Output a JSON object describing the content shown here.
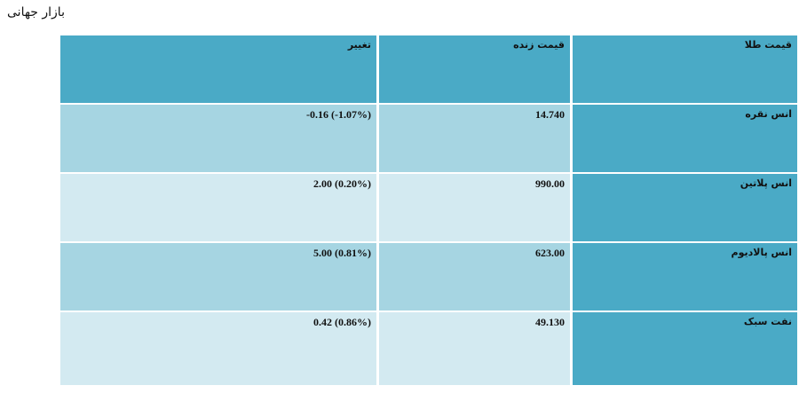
{
  "title": "بازار جهانی",
  "table": {
    "headers": [
      "قیمت طلا",
      "قیمت زنده",
      "تغییر"
    ],
    "rows": [
      {
        "name": "انس نقره",
        "price": "14.740",
        "change": "-0.16 (-1.07%)"
      },
      {
        "name": "انس پلاتین",
        "price": "990.00",
        "change": "2.00 (0.20%)"
      },
      {
        "name": "انس پالادیوم",
        "price": "623.00",
        "change": "5.00 (0.81%)"
      },
      {
        "name": "نفت سبک",
        "price": "49.130",
        "change": "0.42 (0.86%)"
      }
    ]
  },
  "colors": {
    "header": "#4aaac6",
    "row_dark": "#a6d5e2",
    "row_light": "#d3eaf1"
  }
}
